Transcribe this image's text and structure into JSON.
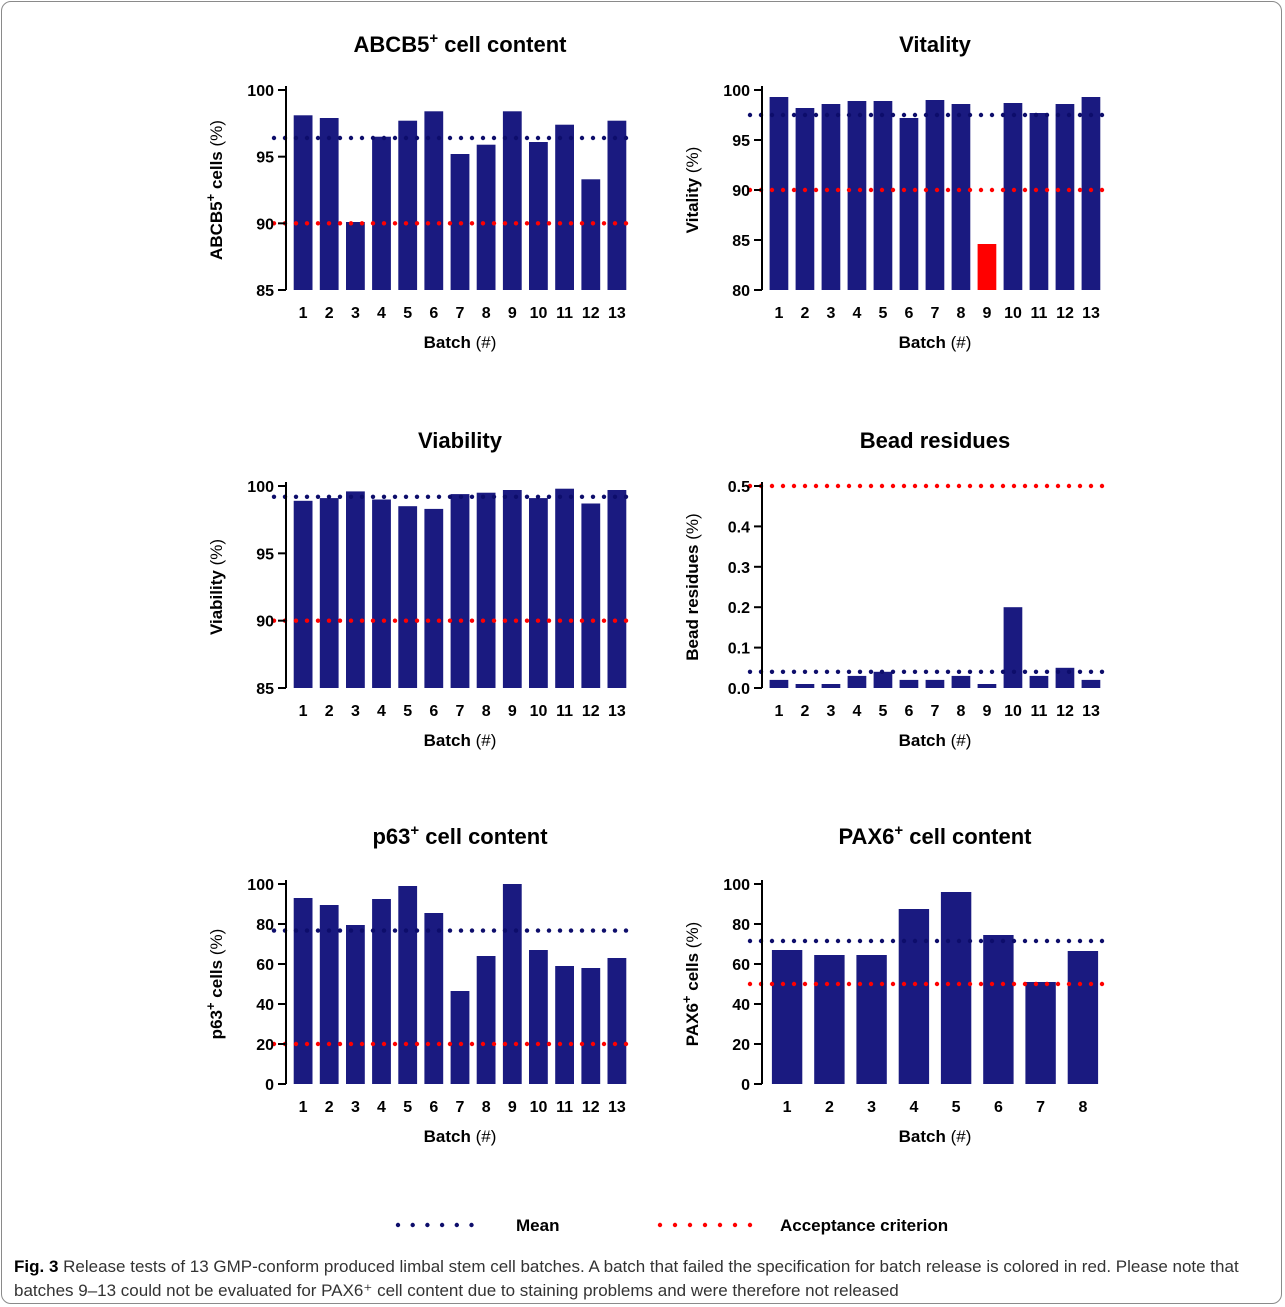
{
  "colors": {
    "bar": "#1a1a80",
    "fail_bar": "#ff0000",
    "mean_line": "#0d0d6b",
    "criterion_line": "#ff0000"
  },
  "legend": {
    "mean": "Mean",
    "criterion": "Acceptance criterion"
  },
  "caption": {
    "label": "Fig. 3",
    "text": "Release tests of 13 GMP-conform produced limbal stem cell batches. A batch that failed the specification for batch release is colored in red. Please note that batches 9–13 could not be evaluated for PAX6⁺ cell content due to staining problems and were therefore not released"
  },
  "chart_data": [
    {
      "type": "bar",
      "title": "ABCB5⁺ cell content",
      "xlabel": "Batch",
      "xlabel_unit": "(#)",
      "ylabel": "ABCB5⁺ cells",
      "ylabel_unit": "(%)",
      "ylim": [
        85,
        100
      ],
      "yticks": [
        85,
        90,
        95,
        100
      ],
      "categories": [
        "1",
        "2",
        "3",
        "4",
        "5",
        "6",
        "7",
        "8",
        "9",
        "10",
        "11",
        "12",
        "13"
      ],
      "values": [
        98.1,
        97.9,
        90.1,
        96.5,
        97.7,
        98.4,
        95.2,
        95.9,
        98.4,
        96.1,
        97.4,
        93.3,
        97.7
      ],
      "mean": 96.4,
      "criterion": 90,
      "failed": []
    },
    {
      "type": "bar",
      "title": "Vitality",
      "xlabel": "Batch",
      "xlabel_unit": "(#)",
      "ylabel": "Vitality",
      "ylabel_unit": "(%)",
      "ylim": [
        80,
        100
      ],
      "yticks": [
        80,
        85,
        90,
        95,
        100
      ],
      "categories": [
        "1",
        "2",
        "3",
        "4",
        "5",
        "6",
        "7",
        "8",
        "9",
        "10",
        "11",
        "12",
        "13"
      ],
      "values": [
        99.3,
        98.2,
        98.6,
        98.9,
        98.9,
        97.2,
        99.0,
        98.6,
        84.6,
        98.7,
        97.7,
        98.6,
        99.3
      ],
      "mean": 97.5,
      "criterion": 90,
      "failed": [
        "9"
      ]
    },
    {
      "type": "bar",
      "title": "Viability",
      "xlabel": "Batch",
      "xlabel_unit": "(#)",
      "ylabel": "Viability",
      "ylabel_unit": "(%)",
      "ylim": [
        85,
        100
      ],
      "yticks": [
        85,
        90,
        95,
        100
      ],
      "categories": [
        "1",
        "2",
        "3",
        "4",
        "5",
        "6",
        "7",
        "8",
        "9",
        "10",
        "11",
        "12",
        "13"
      ],
      "values": [
        98.9,
        99.1,
        99.6,
        99.0,
        98.5,
        98.3,
        99.4,
        99.5,
        99.7,
        99.1,
        99.8,
        98.7,
        99.7
      ],
      "mean": 99.2,
      "criterion": 90,
      "failed": []
    },
    {
      "type": "bar",
      "title": "Bead residues",
      "xlabel": "Batch",
      "xlabel_unit": "(#)",
      "ylabel": "Bead residues",
      "ylabel_unit": "(%)",
      "ylim": [
        0,
        0.5
      ],
      "yticks": [
        "0.0",
        "0.1",
        "0.2",
        "0.3",
        "0.4",
        "0.5"
      ],
      "categories": [
        "1",
        "2",
        "3",
        "4",
        "5",
        "6",
        "7",
        "8",
        "9",
        "10",
        "11",
        "12",
        "13"
      ],
      "values": [
        0.02,
        0.01,
        0.01,
        0.03,
        0.04,
        0.02,
        0.02,
        0.03,
        0.01,
        0.2,
        0.03,
        0.05,
        0.02
      ],
      "mean": 0.04,
      "criterion": 0.5,
      "failed": []
    },
    {
      "type": "bar",
      "title": "p63⁺ cell content",
      "xlabel": "Batch",
      "xlabel_unit": "(#)",
      "ylabel": "p63⁺ cells",
      "ylabel_unit": "(%)",
      "ylim": [
        0,
        100
      ],
      "yticks": [
        0,
        20,
        40,
        60,
        80,
        100
      ],
      "categories": [
        "1",
        "2",
        "3",
        "4",
        "5",
        "6",
        "7",
        "8",
        "9",
        "10",
        "11",
        "12",
        "13"
      ],
      "values": [
        93,
        89.5,
        79.5,
        92.5,
        99,
        85.5,
        46.5,
        64,
        100,
        67,
        59,
        58,
        63
      ],
      "mean": 76.7,
      "criterion": 20,
      "failed": []
    },
    {
      "type": "bar",
      "title": "PAX6⁺ cell content",
      "xlabel": "Batch",
      "xlabel_unit": "(#)",
      "ylabel": "PAX6⁺ cells",
      "ylabel_unit": "(%)",
      "ylim": [
        0,
        100
      ],
      "yticks": [
        0,
        20,
        40,
        60,
        80,
        100
      ],
      "categories": [
        "1",
        "2",
        "3",
        "4",
        "5",
        "6",
        "7",
        "8"
      ],
      "values": [
        67,
        64.5,
        64.5,
        87.5,
        96,
        74.5,
        51,
        66.5
      ],
      "mean": 71.5,
      "criterion": 50,
      "failed": []
    }
  ]
}
